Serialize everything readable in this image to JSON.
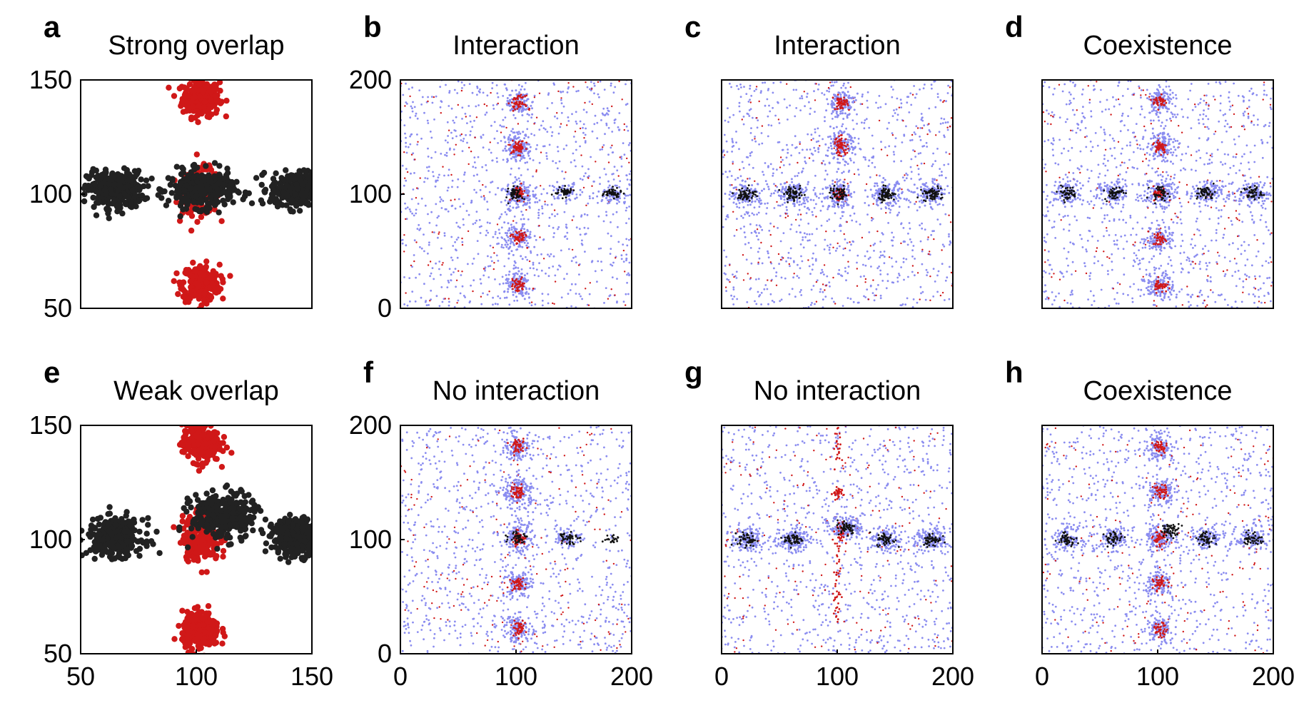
{
  "figure": {
    "panels": [
      {
        "letter": "a",
        "title": "Strong overlap"
      },
      {
        "letter": "b",
        "title": "Interaction"
      },
      {
        "letter": "c",
        "title": "Interaction"
      },
      {
        "letter": "d",
        "title": "Coexistence"
      },
      {
        "letter": "e",
        "title": "Weak overlap"
      },
      {
        "letter": "f",
        "title": "No interaction"
      },
      {
        "letter": "g",
        "title": "No interaction"
      },
      {
        "letter": "h",
        "title": "Coexistence"
      }
    ]
  },
  "chart_data": [
    {
      "panel": "a",
      "type": "scatter",
      "title": "Strong overlap",
      "xlim": [
        50,
        150
      ],
      "ylim": [
        50,
        150
      ],
      "yticks": [
        "150",
        "100",
        "50"
      ],
      "xticks": [],
      "colors": {
        "black": "#222222",
        "red": "#d01818"
      },
      "clusters": {
        "black": [
          {
            "x": 65,
            "y": 102,
            "sx": 6,
            "sy": 4,
            "n": 330
          },
          {
            "x": 102,
            "y": 102,
            "sx": 7,
            "sy": 4,
            "n": 330
          },
          {
            "x": 144,
            "y": 102,
            "sx": 6,
            "sy": 4,
            "n": 330
          }
        ],
        "red": [
          {
            "x": 102,
            "y": 142,
            "sx": 4,
            "sy": 4,
            "n": 260
          },
          {
            "x": 102,
            "y": 101,
            "sx": 4,
            "sy": 5,
            "n": 220
          },
          {
            "x": 102,
            "y": 61,
            "sx": 4,
            "sy": 4,
            "n": 260
          }
        ]
      }
    },
    {
      "panel": "b",
      "type": "scatter",
      "title": "Interaction",
      "xlim": [
        0,
        200
      ],
      "ylim": [
        0,
        200
      ],
      "yticks": [
        "200",
        "100",
        "0"
      ],
      "xticks": [],
      "colors": {
        "black": "#111111",
        "red": "#d01818",
        "blue": "#8a8cf0"
      },
      "clusters": {
        "black": [
          {
            "x": 100,
            "y": 100,
            "sx": 3,
            "sy": 3,
            "n": 50
          },
          {
            "x": 142,
            "y": 102,
            "sx": 4,
            "sy": 2,
            "n": 50
          },
          {
            "x": 183,
            "y": 101,
            "sx": 4,
            "sy": 2,
            "n": 50
          }
        ],
        "red": [
          {
            "x": 102,
            "y": 180,
            "sx": 3,
            "sy": 3,
            "n": 50
          },
          {
            "x": 102,
            "y": 141,
            "sx": 3,
            "sy": 3,
            "n": 55
          },
          {
            "x": 102,
            "y": 101,
            "sx": 3,
            "sy": 3,
            "n": 50
          },
          {
            "x": 102,
            "y": 62,
            "sx": 3,
            "sy": 3,
            "n": 50
          },
          {
            "x": 102,
            "y": 20,
            "sx": 3,
            "sy": 3,
            "n": 50
          }
        ],
        "blue": [
          {
            "x": 102,
            "y": 180,
            "sx": 5,
            "sy": 6,
            "n": 120
          },
          {
            "x": 102,
            "y": 141,
            "sx": 6,
            "sy": 6,
            "n": 150
          },
          {
            "x": 102,
            "y": 100,
            "sx": 6,
            "sy": 6,
            "n": 150
          },
          {
            "x": 102,
            "y": 62,
            "sx": 6,
            "sy": 6,
            "n": 120
          },
          {
            "x": 102,
            "y": 20,
            "sx": 6,
            "sy": 6,
            "n": 120
          },
          {
            "x": 142,
            "y": 102,
            "sx": 6,
            "sy": 4,
            "n": 60
          },
          {
            "x": 183,
            "y": 101,
            "sx": 6,
            "sy": 4,
            "n": 60
          }
        ]
      }
    },
    {
      "panel": "c",
      "type": "scatter",
      "title": "Interaction",
      "xlim": [
        0,
        200
      ],
      "ylim": [
        0,
        200
      ],
      "yticks": [],
      "xticks": [],
      "colors": {
        "black": "#111111",
        "red": "#d01818",
        "blue": "#8a8cf0"
      },
      "clusters": {
        "black": [
          {
            "x": 22,
            "y": 100,
            "sx": 4,
            "sy": 3,
            "n": 60
          },
          {
            "x": 62,
            "y": 100,
            "sx": 4,
            "sy": 3,
            "n": 60
          },
          {
            "x": 102,
            "y": 100,
            "sx": 4,
            "sy": 3,
            "n": 50
          },
          {
            "x": 142,
            "y": 100,
            "sx": 4,
            "sy": 3,
            "n": 60
          },
          {
            "x": 182,
            "y": 100,
            "sx": 4,
            "sy": 3,
            "n": 60
          }
        ],
        "red": [
          {
            "x": 103,
            "y": 180,
            "sx": 3,
            "sy": 3,
            "n": 50
          },
          {
            "x": 103,
            "y": 142,
            "sx": 3,
            "sy": 4,
            "n": 60
          },
          {
            "x": 103,
            "y": 100,
            "sx": 3,
            "sy": 3,
            "n": 30
          }
        ],
        "blue": [
          {
            "x": 103,
            "y": 180,
            "sx": 6,
            "sy": 6,
            "n": 130
          },
          {
            "x": 103,
            "y": 142,
            "sx": 6,
            "sy": 6,
            "n": 150
          },
          {
            "x": 102,
            "y": 100,
            "sx": 6,
            "sy": 6,
            "n": 140
          },
          {
            "x": 22,
            "y": 100,
            "sx": 7,
            "sy": 5,
            "n": 130
          },
          {
            "x": 62,
            "y": 100,
            "sx": 7,
            "sy": 5,
            "n": 130
          },
          {
            "x": 142,
            "y": 100,
            "sx": 7,
            "sy": 5,
            "n": 130
          },
          {
            "x": 182,
            "y": 100,
            "sx": 7,
            "sy": 5,
            "n": 130
          }
        ]
      }
    },
    {
      "panel": "d",
      "type": "scatter",
      "title": "Coexistence",
      "xlim": [
        0,
        200
      ],
      "ylim": [
        0,
        200
      ],
      "yticks": [],
      "xticks": [],
      "colors": {
        "black": "#111111",
        "red": "#d01818",
        "blue": "#8a8cf0"
      },
      "clusters": {
        "black": [
          {
            "x": 22,
            "y": 101,
            "sx": 4,
            "sy": 3,
            "n": 45
          },
          {
            "x": 62,
            "y": 101,
            "sx": 4,
            "sy": 3,
            "n": 45
          },
          {
            "x": 102,
            "y": 101,
            "sx": 4,
            "sy": 3,
            "n": 35
          },
          {
            "x": 142,
            "y": 101,
            "sx": 4,
            "sy": 3,
            "n": 45
          },
          {
            "x": 182,
            "y": 101,
            "sx": 4,
            "sy": 3,
            "n": 45
          }
        ],
        "red": [
          {
            "x": 102,
            "y": 181,
            "sx": 3,
            "sy": 3,
            "n": 40
          },
          {
            "x": 102,
            "y": 142,
            "sx": 3,
            "sy": 3,
            "n": 45
          },
          {
            "x": 102,
            "y": 101,
            "sx": 3,
            "sy": 3,
            "n": 40
          },
          {
            "x": 102,
            "y": 61,
            "sx": 3,
            "sy": 3,
            "n": 40
          },
          {
            "x": 102,
            "y": 20,
            "sx": 3,
            "sy": 3,
            "n": 40
          }
        ],
        "blue": [
          {
            "x": 102,
            "y": 181,
            "sx": 6,
            "sy": 6,
            "n": 110
          },
          {
            "x": 102,
            "y": 142,
            "sx": 6,
            "sy": 6,
            "n": 130
          },
          {
            "x": 102,
            "y": 101,
            "sx": 6,
            "sy": 6,
            "n": 130
          },
          {
            "x": 102,
            "y": 61,
            "sx": 6,
            "sy": 6,
            "n": 110
          },
          {
            "x": 102,
            "y": 20,
            "sx": 6,
            "sy": 6,
            "n": 110
          },
          {
            "x": 22,
            "y": 101,
            "sx": 7,
            "sy": 5,
            "n": 110
          },
          {
            "x": 62,
            "y": 101,
            "sx": 7,
            "sy": 5,
            "n": 110
          },
          {
            "x": 142,
            "y": 101,
            "sx": 7,
            "sy": 5,
            "n": 110
          },
          {
            "x": 182,
            "y": 101,
            "sx": 7,
            "sy": 5,
            "n": 110
          }
        ]
      }
    },
    {
      "panel": "e",
      "type": "scatter",
      "title": "Weak overlap",
      "xlim": [
        50,
        150
      ],
      "ylim": [
        50,
        150
      ],
      "yticks": [
        "150",
        "100",
        "50"
      ],
      "xticks": [
        "50",
        "100",
        "150"
      ],
      "colors": {
        "black": "#222222",
        "red": "#d01818"
      },
      "clusters": {
        "black": [
          {
            "x": 65,
            "y": 101,
            "sx": 6,
            "sy": 4,
            "n": 330
          },
          {
            "x": 112,
            "y": 110,
            "sx": 7,
            "sy": 5,
            "n": 330
          },
          {
            "x": 143,
            "y": 101,
            "sx": 5,
            "sy": 4,
            "n": 330
          }
        ],
        "red": [
          {
            "x": 102,
            "y": 142,
            "sx": 4,
            "sy": 4,
            "n": 260
          },
          {
            "x": 102,
            "y": 101,
            "sx": 4,
            "sy": 5,
            "n": 240
          },
          {
            "x": 102,
            "y": 60,
            "sx": 4,
            "sy": 4,
            "n": 260
          }
        ]
      }
    },
    {
      "panel": "f",
      "type": "scatter",
      "title": "No interaction",
      "xlim": [
        0,
        200
      ],
      "ylim": [
        0,
        200
      ],
      "yticks": [
        "200",
        "100",
        "0"
      ],
      "xticks": [
        "0",
        "100",
        "200"
      ],
      "colors": {
        "black": "#111111",
        "red": "#d01818",
        "blue": "#8a8cf0"
      },
      "clusters": {
        "black": [
          {
            "x": 102,
            "y": 102,
            "sx": 4,
            "sy": 3,
            "n": 40
          },
          {
            "x": 145,
            "y": 102,
            "sx": 4,
            "sy": 3,
            "n": 45
          },
          {
            "x": 182,
            "y": 101,
            "sx": 4,
            "sy": 2,
            "n": 20
          }
        ],
        "red": [
          {
            "x": 102,
            "y": 181,
            "sx": 3,
            "sy": 3,
            "n": 45
          },
          {
            "x": 102,
            "y": 141,
            "sx": 3,
            "sy": 3,
            "n": 50
          },
          {
            "x": 102,
            "y": 101,
            "sx": 3,
            "sy": 3,
            "n": 50
          },
          {
            "x": 102,
            "y": 61,
            "sx": 3,
            "sy": 3,
            "n": 45
          },
          {
            "x": 102,
            "y": 22,
            "sx": 3,
            "sy": 3,
            "n": 45
          }
        ],
        "blue": [
          {
            "x": 102,
            "y": 181,
            "sx": 6,
            "sy": 6,
            "n": 120
          },
          {
            "x": 102,
            "y": 141,
            "sx": 7,
            "sy": 7,
            "n": 170
          },
          {
            "x": 102,
            "y": 101,
            "sx": 7,
            "sy": 7,
            "n": 160
          },
          {
            "x": 102,
            "y": 61,
            "sx": 6,
            "sy": 6,
            "n": 120
          },
          {
            "x": 102,
            "y": 22,
            "sx": 6,
            "sy": 6,
            "n": 120
          },
          {
            "x": 145,
            "y": 102,
            "sx": 6,
            "sy": 4,
            "n": 70
          }
        ]
      }
    },
    {
      "panel": "g",
      "type": "scatter",
      "title": "No interaction",
      "xlim": [
        0,
        200
      ],
      "ylim": [
        0,
        200
      ],
      "yticks": [],
      "xticks": [
        "0",
        "100",
        "200"
      ],
      "colors": {
        "black": "#111111",
        "red": "#d01818",
        "blue": "#8a8cf0"
      },
      "clusters": {
        "black": [
          {
            "x": 22,
            "y": 100,
            "sx": 4,
            "sy": 3,
            "n": 50
          },
          {
            "x": 62,
            "y": 100,
            "sx": 4,
            "sy": 3,
            "n": 50
          },
          {
            "x": 108,
            "y": 111,
            "sx": 4,
            "sy": 3,
            "n": 50
          },
          {
            "x": 142,
            "y": 100,
            "sx": 4,
            "sy": 3,
            "n": 50
          },
          {
            "x": 182,
            "y": 100,
            "sx": 4,
            "sy": 3,
            "n": 50
          }
        ],
        "red": [
          {
            "x": 100,
            "y": 140,
            "sx": 2,
            "sy": 3,
            "n": 35
          },
          {
            "x": 100,
            "y": 180,
            "sx": 1.5,
            "sy": 10,
            "n": 25
          },
          {
            "x": 100,
            "y": 60,
            "sx": 1.5,
            "sy": 25,
            "n": 45
          },
          {
            "x": 103,
            "y": 105,
            "sx": 3,
            "sy": 6,
            "n": 30
          }
        ],
        "blue": [
          {
            "x": 22,
            "y": 100,
            "sx": 7,
            "sy": 5,
            "n": 140
          },
          {
            "x": 62,
            "y": 100,
            "sx": 7,
            "sy": 5,
            "n": 140
          },
          {
            "x": 108,
            "y": 111,
            "sx": 7,
            "sy": 5,
            "n": 150
          },
          {
            "x": 142,
            "y": 100,
            "sx": 7,
            "sy": 5,
            "n": 140
          },
          {
            "x": 182,
            "y": 100,
            "sx": 7,
            "sy": 5,
            "n": 140
          }
        ]
      }
    },
    {
      "panel": "h",
      "type": "scatter",
      "title": "Coexistence",
      "xlim": [
        0,
        200
      ],
      "ylim": [
        0,
        200
      ],
      "yticks": [],
      "xticks": [
        "0",
        "100",
        "200"
      ],
      "colors": {
        "black": "#111111",
        "red": "#d01818",
        "blue": "#8a8cf0"
      },
      "clusters": {
        "black": [
          {
            "x": 22,
            "y": 101,
            "sx": 4,
            "sy": 3,
            "n": 45
          },
          {
            "x": 62,
            "y": 101,
            "sx": 4,
            "sy": 3,
            "n": 45
          },
          {
            "x": 111,
            "y": 108,
            "sx": 4,
            "sy": 3,
            "n": 50
          },
          {
            "x": 142,
            "y": 101,
            "sx": 4,
            "sy": 3,
            "n": 45
          },
          {
            "x": 182,
            "y": 101,
            "sx": 4,
            "sy": 3,
            "n": 45
          }
        ],
        "red": [
          {
            "x": 102,
            "y": 181,
            "sx": 3,
            "sy": 3,
            "n": 40
          },
          {
            "x": 102,
            "y": 142,
            "sx": 3,
            "sy": 3,
            "n": 45
          },
          {
            "x": 102,
            "y": 101,
            "sx": 3,
            "sy": 4,
            "n": 45
          },
          {
            "x": 102,
            "y": 61,
            "sx": 3,
            "sy": 3,
            "n": 40
          },
          {
            "x": 102,
            "y": 21,
            "sx": 3,
            "sy": 3,
            "n": 40
          }
        ],
        "blue": [
          {
            "x": 102,
            "y": 181,
            "sx": 6,
            "sy": 6,
            "n": 110
          },
          {
            "x": 102,
            "y": 142,
            "sx": 6,
            "sy": 6,
            "n": 130
          },
          {
            "x": 102,
            "y": 101,
            "sx": 6,
            "sy": 6,
            "n": 130
          },
          {
            "x": 102,
            "y": 61,
            "sx": 6,
            "sy": 6,
            "n": 110
          },
          {
            "x": 102,
            "y": 21,
            "sx": 6,
            "sy": 6,
            "n": 110
          },
          {
            "x": 22,
            "y": 101,
            "sx": 7,
            "sy": 5,
            "n": 110
          },
          {
            "x": 62,
            "y": 101,
            "sx": 7,
            "sy": 5,
            "n": 110
          },
          {
            "x": 142,
            "y": 101,
            "sx": 7,
            "sy": 5,
            "n": 110
          },
          {
            "x": 182,
            "y": 101,
            "sx": 7,
            "sy": 5,
            "n": 110
          }
        ]
      }
    }
  ]
}
